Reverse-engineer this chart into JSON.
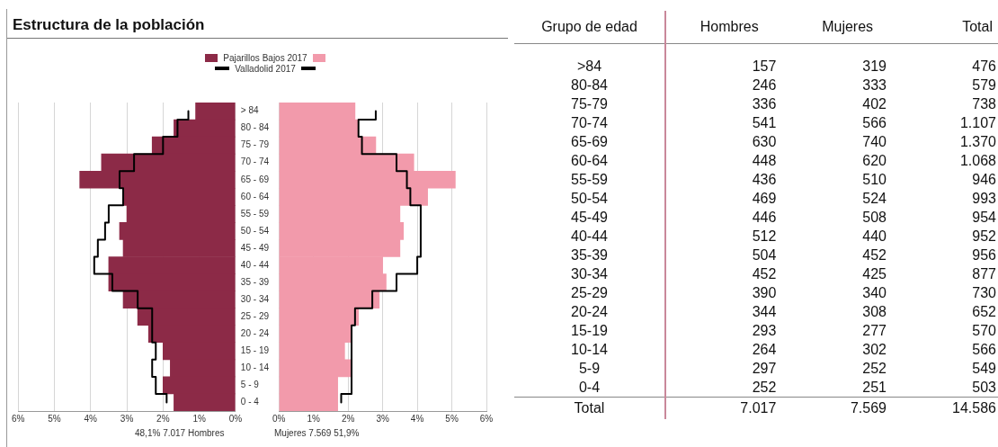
{
  "chart_data": [
    {
      "type": "bar",
      "orientation": "horizontal",
      "title": "Estructura de la población",
      "legend": "top",
      "grid": "x",
      "categories": [
        "> 84",
        "80 - 84",
        "75 - 79",
        "70 - 74",
        "65 - 69",
        "60 - 64",
        "55 - 59",
        "50 - 54",
        "45 - 49",
        "40 - 44",
        "35 - 39",
        "30 - 34",
        "25 - 29",
        "20 - 24",
        "15 - 19",
        "10 - 14",
        "5 - 9",
        "0 - 4"
      ],
      "xlim": [
        6,
        0
      ],
      "xticks": [
        {
          "value": 6,
          "label": "6%"
        },
        {
          "value": 5,
          "label": "5%"
        },
        {
          "value": 4,
          "label": "4%"
        },
        {
          "value": 3,
          "label": "3%"
        },
        {
          "value": 2,
          "label": "2%"
        },
        {
          "value": 1,
          "label": "1%"
        },
        {
          "value": 0,
          "label": "0%"
        }
      ],
      "series": [
        {
          "name": "Pajarillos Bajos 2017",
          "type": "bar",
          "color": "#8c2a47",
          "values": [
            1.1,
            1.7,
            2.3,
            3.7,
            4.3,
            3.1,
            3.0,
            3.2,
            3.1,
            3.5,
            3.5,
            3.1,
            2.7,
            2.4,
            2.0,
            1.8,
            2.0,
            1.7
          ]
        },
        {
          "name": "Valladolid 2017",
          "type": "step",
          "color": "#000000",
          "values": [
            1.3,
            1.6,
            2.0,
            2.8,
            3.2,
            3.1,
            3.5,
            3.6,
            3.8,
            3.9,
            3.4,
            2.7,
            2.3,
            2.3,
            2.2,
            2.3,
            2.2,
            1.9
          ]
        }
      ],
      "annotations": [
        "48,1% 7.017  Hombres"
      ]
    },
    {
      "type": "bar",
      "orientation": "horizontal",
      "grid": "x",
      "tick_labels": "x",
      "categories": [
        "> 84",
        "80 - 84",
        "75 - 79",
        "70 - 74",
        "65 - 69",
        "60 - 64",
        "55 - 59",
        "50 - 54",
        "45 - 49",
        "40 - 44",
        "35 - 39",
        "30 - 34",
        "25 - 29",
        "20 - 24",
        "15 - 19",
        "10 - 14",
        "5 - 9",
        "0 - 4"
      ],
      "xlim": [
        0,
        6
      ],
      "xticks": [
        {
          "value": 0,
          "label": "0%"
        },
        {
          "value": 1,
          "label": "1%"
        },
        {
          "value": 2,
          "label": "2%"
        },
        {
          "value": 3,
          "label": "3%"
        },
        {
          "value": 4,
          "label": "4%"
        },
        {
          "value": 5,
          "label": "5%"
        },
        {
          "value": 6,
          "label": "6%"
        }
      ],
      "series": [
        {
          "type": "bar",
          "color": "#f29aab",
          "values": [
            2.2,
            2.3,
            2.8,
            3.9,
            5.1,
            4.3,
            3.5,
            3.6,
            3.5,
            3.0,
            3.1,
            2.9,
            2.3,
            2.1,
            1.9,
            2.1,
            1.7,
            1.7
          ]
        },
        {
          "type": "step",
          "color": "#000000",
          "values": [
            2.8,
            2.3,
            2.4,
            3.4,
            3.7,
            3.8,
            4.1,
            4.1,
            4.1,
            4.0,
            3.4,
            2.7,
            2.2,
            2.1,
            2.1,
            2.1,
            2.1,
            1.8
          ]
        }
      ],
      "annotations": [
        "Mujeres   7.569   51,9%"
      ]
    },
    {
      "type": "other",
      "xlabel": "Grupo de edad",
      "categories": [
        ">84",
        "80-84",
        "75-79",
        "70-74",
        "65-69",
        "60-64",
        "55-59",
        "50-54",
        "45-49",
        "40-44",
        "35-39",
        "30-34",
        "25-29",
        "20-24",
        "15-19",
        "10-14",
        "5-9",
        "0-4",
        "Total"
      ],
      "series": [
        {
          "name": "Hombres",
          "values": [
            157,
            246,
            336,
            541,
            630,
            448,
            436,
            469,
            446,
            512,
            504,
            452,
            390,
            344,
            293,
            264,
            297,
            252,
            7017
          ],
          "value_labels": [
            "157",
            "246",
            "336",
            "541",
            "630",
            "448",
            "436",
            "469",
            "446",
            "512",
            "504",
            "452",
            "390",
            "344",
            "293",
            "264",
            "297",
            "252",
            "7.017"
          ]
        },
        {
          "name": "Mujeres",
          "values": [
            319,
            333,
            402,
            566,
            740,
            620,
            510,
            524,
            508,
            440,
            452,
            425,
            340,
            308,
            277,
            302,
            252,
            251,
            7569
          ],
          "value_labels": [
            "319",
            "333",
            "402",
            "566",
            "740",
            "620",
            "510",
            "524",
            "508",
            "440",
            "452",
            "425",
            "340",
            "308",
            "277",
            "302",
            "252",
            "251",
            "7.569"
          ]
        },
        {
          "name": "Total",
          "values": [
            476,
            579,
            738,
            1107,
            1370,
            1068,
            946,
            993,
            954,
            952,
            956,
            877,
            730,
            652,
            570,
            566,
            549,
            503,
            14586
          ],
          "value_labels": [
            "476",
            "579",
            "738",
            "1.107",
            "1.370",
            "1.068",
            "946",
            "993",
            "954",
            "952",
            "956",
            "877",
            "730",
            "652",
            "570",
            "566",
            "549",
            "503",
            "14.586"
          ]
        }
      ]
    }
  ]
}
